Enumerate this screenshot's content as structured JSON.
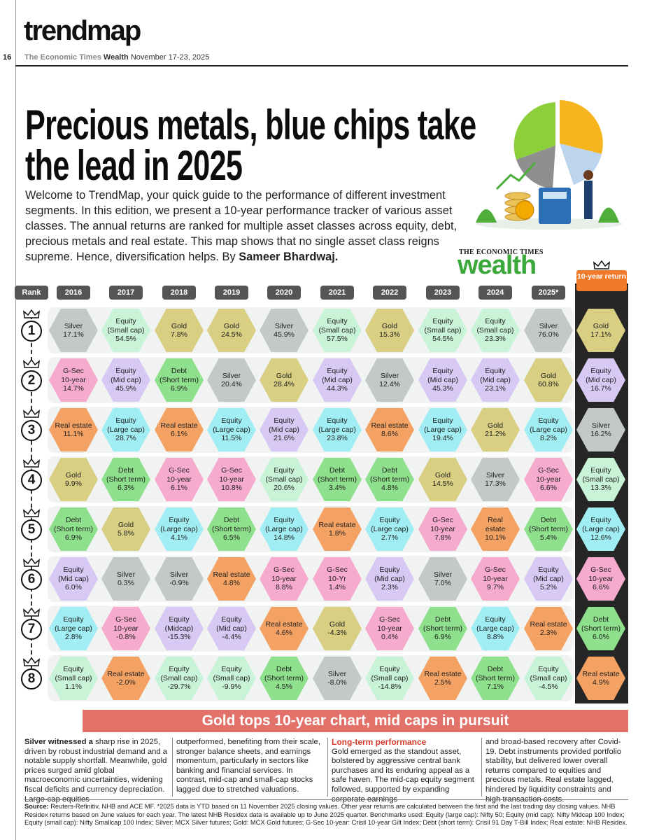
{
  "header": {
    "brand": "trendmap",
    "page_number": "16",
    "publication": "The Economic Times",
    "section": "Wealth",
    "date": "November 17-23, 2025"
  },
  "title": "Precious metals, blue chips take the lead in 2025",
  "intro": "Welcome to TrendMap, your quick guide to the performance of different investment segments. In this edition, we present a 10-year performance tracker of various asset classes. The annual returns are ranked for multiple asset classes across equity, debt, precious metals and real estate. This map shows that no single asset class reigns supreme. Hence, diversification helps. By",
  "byline": "Sameer Bhardwaj.",
  "logo": {
    "top": "THE ECONOMIC TIMES",
    "name": "wealth"
  },
  "table": {
    "columns": [
      "Rank",
      "2016",
      "2017",
      "2018",
      "2019",
      "2020",
      "2021",
      "2022",
      "2023",
      "2024",
      "2025*",
      "10-year return"
    ],
    "rows": [
      {
        "rank": "1",
        "cells": [
          {
            "label": [
              "Silver"
            ],
            "value": "17.1%",
            "color": "#c3c8c9"
          },
          {
            "label": [
              "Equity",
              "(Small cap)"
            ],
            "value": "54.5%",
            "color": "#c9f3d6"
          },
          {
            "label": [
              "Gold"
            ],
            "value": "7.8%",
            "color": "#d8cf82"
          },
          {
            "label": [
              "Gold"
            ],
            "value": "24.5%",
            "color": "#d8cf82"
          },
          {
            "label": [
              "Silver"
            ],
            "value": "45.9%",
            "color": "#c3c8c9"
          },
          {
            "label": [
              "Equity",
              "(Small cap)"
            ],
            "value": "57.5%",
            "color": "#c9f3d6"
          },
          {
            "label": [
              "Gold"
            ],
            "value": "15.3%",
            "color": "#d8cf82"
          },
          {
            "label": [
              "Equity",
              "(Small cap)"
            ],
            "value": "54.5%",
            "color": "#c9f3d6"
          },
          {
            "label": [
              "Equity",
              "(Small cap)"
            ],
            "value": "23.3%",
            "color": "#c9f3d6"
          },
          {
            "label": [
              "Silver"
            ],
            "value": "76.0%",
            "color": "#c3c8c9"
          },
          {
            "label": [
              "Gold"
            ],
            "value": "17.1%",
            "color": "#d8cf82"
          }
        ]
      },
      {
        "rank": "2",
        "cells": [
          {
            "label": [
              "G-Sec",
              "10-year"
            ],
            "value": "14.7%",
            "color": "#f6aacd"
          },
          {
            "label": [
              "Equity",
              "(Mid cap)"
            ],
            "value": "45.9%",
            "color": "#d7c9f3"
          },
          {
            "label": [
              "Debt",
              "(Short term)"
            ],
            "value": "6.9%",
            "color": "#8fe08c"
          },
          {
            "label": [
              "Silver"
            ],
            "value": "20.4%",
            "color": "#c3c8c9"
          },
          {
            "label": [
              "Gold"
            ],
            "value": "28.4%",
            "color": "#d8cf82"
          },
          {
            "label": [
              "Equity",
              "(Mid cap)"
            ],
            "value": "44.3%",
            "color": "#d7c9f3"
          },
          {
            "label": [
              "Silver"
            ],
            "value": "12.4%",
            "color": "#c3c8c9"
          },
          {
            "label": [
              "Equity",
              "(Mid cap)"
            ],
            "value": "45.3%",
            "color": "#d7c9f3"
          },
          {
            "label": [
              "Equity",
              "(Mid cap)"
            ],
            "value": "23.1%",
            "color": "#d7c9f3"
          },
          {
            "label": [
              "Gold"
            ],
            "value": "60.8%",
            "color": "#d8cf82"
          },
          {
            "label": [
              "Equity",
              "(Mid cap)"
            ],
            "value": "16.7%",
            "color": "#d7c9f3"
          }
        ]
      },
      {
        "rank": "3",
        "cells": [
          {
            "label": [
              "Real estate"
            ],
            "value": "11.1%",
            "color": "#f4a263"
          },
          {
            "label": [
              "Equity",
              "(Large cap)"
            ],
            "value": "28.7%",
            "color": "#a0eef3"
          },
          {
            "label": [
              "Real estate"
            ],
            "value": "6.1%",
            "color": "#f4a263"
          },
          {
            "label": [
              "Equity",
              "(Large cap)"
            ],
            "value": "11.5%",
            "color": "#a0eef3"
          },
          {
            "label": [
              "Equity",
              "(Mid cap)"
            ],
            "value": "21.6%",
            "color": "#d7c9f3"
          },
          {
            "label": [
              "Equity",
              "(Large cap)"
            ],
            "value": "23.8%",
            "color": "#a0eef3"
          },
          {
            "label": [
              "Real estate"
            ],
            "value": "8.6%",
            "color": "#f4a263"
          },
          {
            "label": [
              "Equity",
              "(Large cap)"
            ],
            "value": "19.4%",
            "color": "#a0eef3"
          },
          {
            "label": [
              "Gold"
            ],
            "value": "21.2%",
            "color": "#d8cf82"
          },
          {
            "label": [
              "Equity",
              "(Large cap)"
            ],
            "value": "8.2%",
            "color": "#a0eef3"
          },
          {
            "label": [
              "Silver"
            ],
            "value": "16.2%",
            "color": "#c3c8c9"
          }
        ]
      },
      {
        "rank": "4",
        "cells": [
          {
            "label": [
              "Gold"
            ],
            "value": "9.9%",
            "color": "#d8cf82"
          },
          {
            "label": [
              "Debt",
              "(Short term)"
            ],
            "value": "6.3%",
            "color": "#8fe08c"
          },
          {
            "label": [
              "G-Sec",
              "10-year"
            ],
            "value": "6.1%",
            "color": "#f6aacd"
          },
          {
            "label": [
              "G-Sec",
              "10-year"
            ],
            "value": "10.8%",
            "color": "#f6aacd"
          },
          {
            "label": [
              "Equity",
              "(Small cap)"
            ],
            "value": "20.6%",
            "color": "#c9f3d6"
          },
          {
            "label": [
              "Debt",
              "(Short term)"
            ],
            "value": "3.4%",
            "color": "#8fe08c"
          },
          {
            "label": [
              "Debt",
              "(Short term)"
            ],
            "value": "4.8%",
            "color": "#8fe08c"
          },
          {
            "label": [
              "Gold"
            ],
            "value": "14.5%",
            "color": "#d8cf82"
          },
          {
            "label": [
              "Silver"
            ],
            "value": "17.3%",
            "color": "#c3c8c9"
          },
          {
            "label": [
              "G-Sec",
              "10-year"
            ],
            "value": "6.6%",
            "color": "#f6aacd"
          },
          {
            "label": [
              "Equity",
              "(Small cap)"
            ],
            "value": "13.3%",
            "color": "#c9f3d6"
          }
        ]
      },
      {
        "rank": "5",
        "cells": [
          {
            "label": [
              "Debt",
              "(Short term)"
            ],
            "value": "6.9%",
            "color": "#8fe08c"
          },
          {
            "label": [
              "Gold"
            ],
            "value": "5.8%",
            "color": "#d8cf82"
          },
          {
            "label": [
              "Equity",
              "(Large cap)"
            ],
            "value": "4.1%",
            "color": "#a0eef3"
          },
          {
            "label": [
              "Debt",
              "(Short term)"
            ],
            "value": "6.5%",
            "color": "#8fe08c"
          },
          {
            "label": [
              "Equity",
              "(Large cap)"
            ],
            "value": "14.8%",
            "color": "#a0eef3"
          },
          {
            "label": [
              "Real estate"
            ],
            "value": "1.8%",
            "color": "#f4a263"
          },
          {
            "label": [
              "Equity",
              "(Large cap)"
            ],
            "value": "2.7%",
            "color": "#a0eef3"
          },
          {
            "label": [
              "G-Sec",
              "10-year"
            ],
            "value": "7.8%",
            "color": "#f6aacd"
          },
          {
            "label": [
              "Real",
              "estate"
            ],
            "value": "10.1%",
            "color": "#f4a263"
          },
          {
            "label": [
              "Debt",
              "(Short term)"
            ],
            "value": "5.4%",
            "color": "#8fe08c"
          },
          {
            "label": [
              "Equity",
              "(Large cap)"
            ],
            "value": "12.6%",
            "color": "#a0eef3"
          }
        ]
      },
      {
        "rank": "6",
        "cells": [
          {
            "label": [
              "Equity",
              "(Mid cap)"
            ],
            "value": "6.0%",
            "color": "#d7c9f3"
          },
          {
            "label": [
              "Silver"
            ],
            "value": "0.3%",
            "color": "#c3c8c9"
          },
          {
            "label": [
              "Silver"
            ],
            "value": "-0.9%",
            "color": "#c3c8c9"
          },
          {
            "label": [
              "Real estate"
            ],
            "value": "4.8%",
            "color": "#f4a263"
          },
          {
            "label": [
              "G-Sec",
              "10-year"
            ],
            "value": "8.8%",
            "color": "#f6aacd"
          },
          {
            "label": [
              "G-Sec",
              "10-Yr"
            ],
            "value": "1.4%",
            "color": "#f6aacd"
          },
          {
            "label": [
              "Equity",
              "(Mid cap)"
            ],
            "value": "2.3%",
            "color": "#d7c9f3"
          },
          {
            "label": [
              "Silver"
            ],
            "value": "7.0%",
            "color": "#c3c8c9"
          },
          {
            "label": [
              "G-Sec",
              "10-year"
            ],
            "value": "9.7%",
            "color": "#f6aacd"
          },
          {
            "label": [
              "Equity",
              "(Mid cap)"
            ],
            "value": "5.2%",
            "color": "#d7c9f3"
          },
          {
            "label": [
              "G-Sec",
              "10-year"
            ],
            "value": "6.6%",
            "color": "#f6aacd"
          }
        ]
      },
      {
        "rank": "7",
        "cells": [
          {
            "label": [
              "Equity",
              "(Large cap)"
            ],
            "value": "2.8%",
            "color": "#a0eef3"
          },
          {
            "label": [
              "G-Sec",
              "10-year"
            ],
            "value": "-0.8%",
            "color": "#f6aacd"
          },
          {
            "label": [
              "Equity",
              "(Midcap)"
            ],
            "value": "-15.3%",
            "color": "#d7c9f3"
          },
          {
            "label": [
              "Equity",
              "(Mid cap)"
            ],
            "value": "-4.4%",
            "color": "#d7c9f3"
          },
          {
            "label": [
              "Real estate"
            ],
            "value": "4.6%",
            "color": "#f4a263"
          },
          {
            "label": [
              "Gold"
            ],
            "value": "-4.3%",
            "color": "#d8cf82"
          },
          {
            "label": [
              "G-Sec",
              "10-year"
            ],
            "value": "0.4%",
            "color": "#f6aacd"
          },
          {
            "label": [
              "Debt",
              "(Short term)"
            ],
            "value": "6.9%",
            "color": "#8fe08c"
          },
          {
            "label": [
              "Equity",
              "(Large cap)"
            ],
            "value": "8.8%",
            "color": "#a0eef3"
          },
          {
            "label": [
              "Real estate"
            ],
            "value": "2.3%",
            "color": "#f4a263"
          },
          {
            "label": [
              "Debt",
              "(Short term)"
            ],
            "value": "6.0%",
            "color": "#8fe08c"
          }
        ]
      },
      {
        "rank": "8",
        "cells": [
          {
            "label": [
              "Equity",
              "(Small cap)"
            ],
            "value": "1.1%",
            "color": "#c9f3d6"
          },
          {
            "label": [
              "Real estate"
            ],
            "value": "-2.0%",
            "color": "#f4a263"
          },
          {
            "label": [
              "Equity",
              "(Small cap)"
            ],
            "value": "-29.7%",
            "color": "#c9f3d6"
          },
          {
            "label": [
              "Equity",
              "(Small cap)"
            ],
            "value": "-9.9%",
            "color": "#c9f3d6"
          },
          {
            "label": [
              "Debt",
              "(Short term)"
            ],
            "value": "4.5%",
            "color": "#8fe08c"
          },
          {
            "label": [
              "Silver"
            ],
            "value": "-8.0%",
            "color": "#c3c8c9"
          },
          {
            "label": [
              "Equity",
              "(Small cap)"
            ],
            "value": "-14.8%",
            "color": "#c9f3d6"
          },
          {
            "label": [
              "Real estate"
            ],
            "value": "2.5%",
            "color": "#f4a263"
          },
          {
            "label": [
              "Debt",
              "(Short term)"
            ],
            "value": "7.1%",
            "color": "#8fe08c"
          },
          {
            "label": [
              "Equity",
              "(Small cap)"
            ],
            "value": "-4.5%",
            "color": "#c9f3d6"
          },
          {
            "label": [
              "Real estate"
            ],
            "value": "4.9%",
            "color": "#f4a263"
          }
        ]
      }
    ]
  },
  "banner": "Gold tops 10-year chart, mid caps in pursuit",
  "article": {
    "lead": "Silver witnessed a",
    "col1": "sharp rise in 2025, driven by robust industrial demand and a notable supply shortfall. Meanwhile, gold prices surged amid global macroeconomic uncertainties, widening fiscal deficits and currency depreciation. Large-cap equities",
    "col2": "outperformed, benefiting from their scale, stronger balance sheets, and earnings momentum, particularly in sectors like banking and financial services. In contrast, mid-cap and small-cap stocks lagged due to stretched valuations.",
    "subhead": "Long-term performance",
    "col3": "Gold emerged as the standout asset, bolstered by aggressive central bank purchases and its enduring appeal as a safe haven. The mid-cap equity segment followed, supported by expanding corporate earnings",
    "col4": "and broad-based recovery after Covid-19. Debt instruments provided portfolio stability, but delivered lower overall returns compared to equities and precious metals. Real estate lagged, hindered by liquidity constraints and high transaction costs."
  },
  "source": {
    "label": "Source:",
    "text": "Reuters-Refinitiv, NHB and ACE MF. *2025 data is YTD based on 11 November 2025 closing values. Other year returns are calculated between the first and the last trading day closing values. NHB Residex returns based on June values for each year. The latest NHB Residex data is available up to June 2025 quarter. Benchmarks used: Equity (large cap): Nifty 50; Equity (mid cap): Nifty Midcap 100 Index; Equity (small cap): Nifty Smallcap 100 Index; Silver: MCX Silver futures; Gold: MCX Gold futures; G-Sec 10-year: Crisil 10-year Gilt Index; Debt (short term): Crisil 91 Day T-Bill Index; Real estate: NHB Residex."
  }
}
